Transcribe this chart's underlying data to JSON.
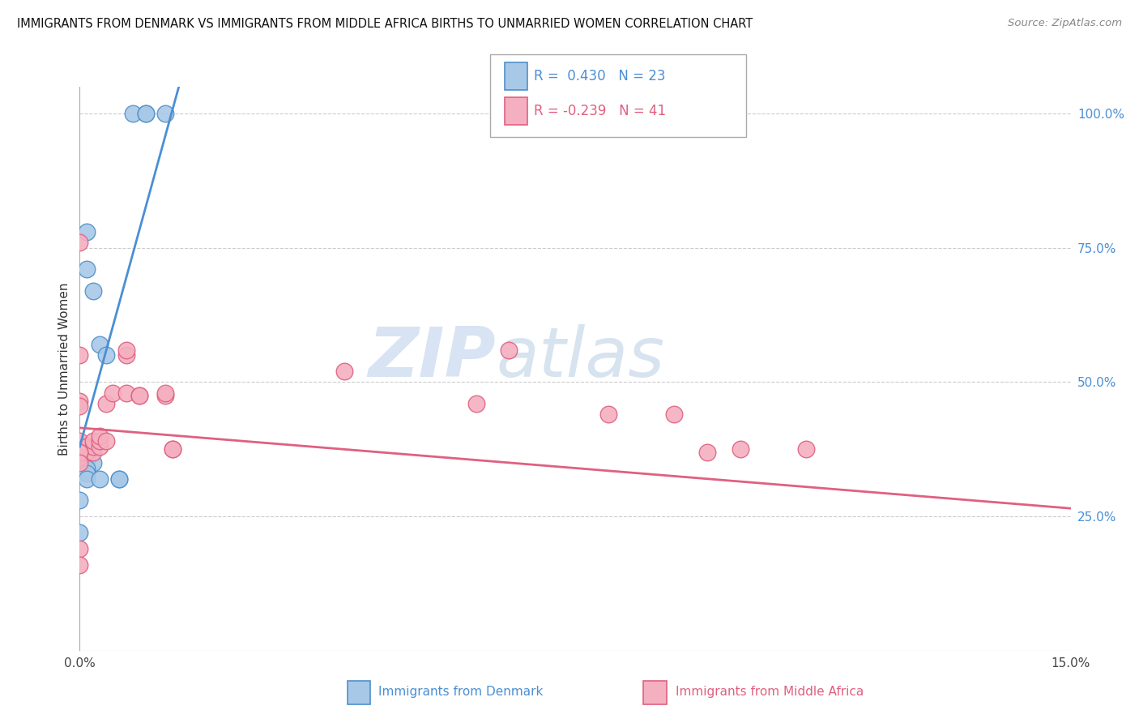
{
  "title": "IMMIGRANTS FROM DENMARK VS IMMIGRANTS FROM MIDDLE AFRICA BIRTHS TO UNMARRIED WOMEN CORRELATION CHART",
  "source": "Source: ZipAtlas.com",
  "xlabel_bottom": "Immigrants from Denmark",
  "xlabel_bottom2": "Immigrants from Middle Africa",
  "ylabel": "Births to Unmarried Women",
  "xlim": [
    0.0,
    0.15
  ],
  "ylim": [
    0.0,
    1.05
  ],
  "color_denmark": "#a8c8e8",
  "color_denmark_edge": "#5090c8",
  "color_denmark_line": "#4a8fd4",
  "color_africa": "#f4b0c0",
  "color_africa_edge": "#e06080",
  "color_africa_line": "#e06080",
  "watermark_zip": "ZIP",
  "watermark_atlas": "atlas",
  "legend_text1": "R =  0.430   N = 23",
  "legend_text2": "R = -0.239   N = 41",
  "dk_line_x0": 0.0,
  "dk_line_y0": 0.38,
  "dk_line_x1": 0.015,
  "dk_line_y1": 1.05,
  "af_line_x0": 0.0,
  "af_line_y0": 0.415,
  "af_line_x1": 0.15,
  "af_line_y1": 0.265,
  "denmark_x": [
    0.008,
    0.01,
    0.01,
    0.013,
    0.001,
    0.001,
    0.002,
    0.003,
    0.004,
    0.0,
    0.001,
    0.001,
    0.0,
    0.001,
    0.002,
    0.001,
    0.001,
    0.001,
    0.006,
    0.006,
    0.003,
    0.0,
    0.0
  ],
  "denmark_y": [
    1.0,
    1.0,
    1.0,
    1.0,
    0.78,
    0.71,
    0.67,
    0.57,
    0.55,
    0.375,
    0.375,
    0.36,
    0.355,
    0.355,
    0.35,
    0.34,
    0.33,
    0.32,
    0.32,
    0.32,
    0.32,
    0.28,
    0.22
  ],
  "africa_x": [
    0.0,
    0.0,
    0.0,
    0.001,
    0.001,
    0.001,
    0.002,
    0.002,
    0.002,
    0.003,
    0.003,
    0.003,
    0.004,
    0.004,
    0.005,
    0.007,
    0.007,
    0.007,
    0.009,
    0.009,
    0.013,
    0.013,
    0.014,
    0.014,
    0.04,
    0.06,
    0.065,
    0.08,
    0.09,
    0.095,
    0.1,
    0.11,
    0.0,
    0.0,
    0.0,
    0.0,
    0.0,
    0.0,
    0.0,
    0.0,
    0.0
  ],
  "africa_y": [
    0.39,
    0.37,
    0.36,
    0.37,
    0.38,
    0.38,
    0.37,
    0.38,
    0.39,
    0.38,
    0.39,
    0.4,
    0.39,
    0.46,
    0.48,
    0.55,
    0.56,
    0.48,
    0.475,
    0.475,
    0.475,
    0.48,
    0.375,
    0.375,
    0.52,
    0.46,
    0.56,
    0.44,
    0.44,
    0.37,
    0.375,
    0.375,
    0.76,
    0.55,
    0.465,
    0.455,
    0.37,
    0.37,
    0.35,
    0.19,
    0.16
  ]
}
